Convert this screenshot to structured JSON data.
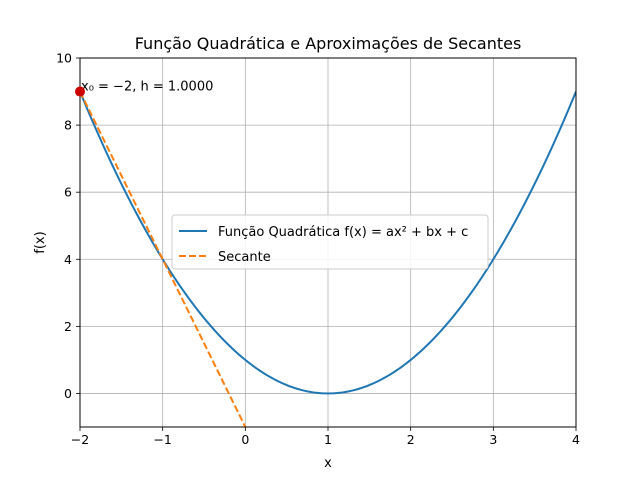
{
  "chart_data": {
    "type": "line",
    "title": "Função Quadrática e Aproximações de Secantes",
    "xlabel": "x",
    "ylabel": "f(x)",
    "xlim": [
      -2,
      4
    ],
    "ylim": [
      -1,
      10
    ],
    "xticks": [
      "−2",
      "−1",
      "0",
      "1",
      "2",
      "3",
      "4"
    ],
    "xtick_values": [
      -2,
      -1,
      0,
      1,
      2,
      3,
      4
    ],
    "yticks": [
      "0",
      "2",
      "4",
      "6",
      "8",
      "10"
    ],
    "ytick_values": [
      0,
      2,
      4,
      6,
      8,
      10
    ],
    "grid": true,
    "legend_position": "center",
    "series": [
      {
        "name": "Função Quadrática f(x) = ax² + bx + c",
        "style": "solid",
        "color": "#1f77b4",
        "function": {
          "a": 1,
          "b": -2,
          "c": 1
        },
        "x": [
          -2,
          -1.5,
          -1,
          -0.5,
          0,
          0.5,
          1,
          1.5,
          2,
          2.5,
          3,
          3.5,
          4
        ],
        "y": [
          9,
          6.25,
          4,
          2.25,
          1,
          0.25,
          0,
          0.25,
          1,
          2.25,
          4,
          6.25,
          9
        ]
      },
      {
        "name": "Secante",
        "style": "dashed",
        "color": "#ff7f0e",
        "x": [
          -2,
          -1,
          0
        ],
        "y": [
          9,
          4,
          -1
        ]
      }
    ],
    "point": {
      "x": -2,
      "y": 9,
      "color": "#cc0000"
    },
    "annotation": {
      "text": "x₀ = −2, h = 1.0000",
      "x": -2,
      "y": 9
    }
  }
}
